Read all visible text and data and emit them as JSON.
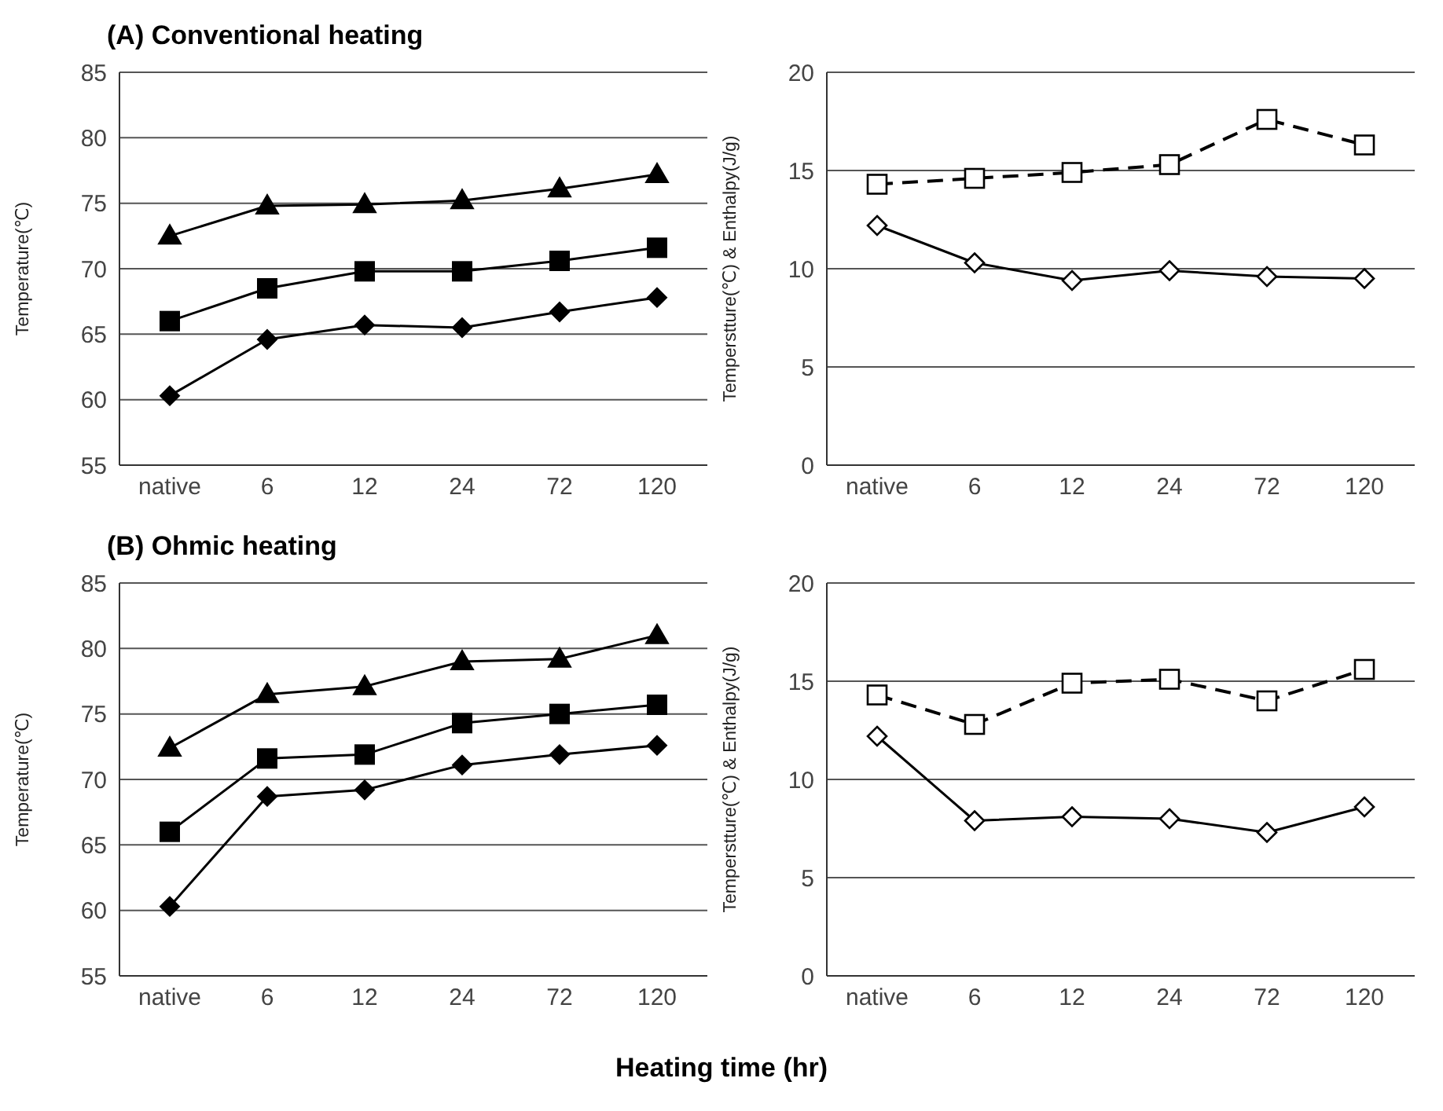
{
  "chart_data": [
    {
      "type": "line",
      "title": "(A) Conventional heating",
      "ylabel": "Temperature(℃)",
      "categories": [
        "native",
        "6",
        "12",
        "24",
        "72",
        "120"
      ],
      "ylim": [
        55,
        85
      ],
      "yticks": [
        55,
        60,
        65,
        70,
        75,
        80,
        85
      ],
      "grid": "y",
      "legend": false,
      "line_style": "solid",
      "series": [
        {
          "color": "#000000",
          "marker": "triangle",
          "values": [
            72.5,
            74.8,
            74.9,
            75.2,
            76.1,
            77.2
          ]
        },
        {
          "color": "#000000",
          "marker": "square",
          "values": [
            66.0,
            68.5,
            69.8,
            69.8,
            70.6,
            71.6
          ]
        },
        {
          "color": "#000000",
          "marker": "diamond",
          "values": [
            60.3,
            64.6,
            65.7,
            65.5,
            66.7,
            67.8
          ]
        }
      ]
    },
    {
      "type": "line",
      "ylabel": "Temperstture(℃) & Enthalpy(J/g)",
      "categories": [
        "native",
        "6",
        "12",
        "24",
        "72",
        "120"
      ],
      "ylim": [
        0,
        20
      ],
      "yticks": [
        0,
        5,
        10,
        15,
        20
      ],
      "grid": "y",
      "legend": false,
      "series": [
        {
          "color": "#000000",
          "marker": "square",
          "line_style": "dashed",
          "values": [
            14.3,
            14.6,
            14.9,
            15.3,
            17.6,
            16.3
          ]
        },
        {
          "color": "#000000",
          "marker": "diamond",
          "line_style": "solid",
          "values": [
            12.2,
            10.3,
            9.4,
            9.9,
            9.6,
            9.5
          ]
        }
      ]
    },
    {
      "type": "line",
      "title": "(B) Ohmic heating",
      "ylabel": "Temperature(℃)",
      "categories": [
        "native",
        "6",
        "12",
        "24",
        "72",
        "120"
      ],
      "ylim": [
        55,
        85
      ],
      "yticks": [
        55,
        60,
        65,
        70,
        75,
        80,
        85
      ],
      "grid": "y",
      "legend": false,
      "line_style": "solid",
      "series": [
        {
          "color": "#000000",
          "marker": "triangle",
          "values": [
            72.4,
            76.5,
            77.1,
            79.0,
            79.2,
            81.0
          ]
        },
        {
          "color": "#000000",
          "marker": "square",
          "values": [
            66.0,
            71.6,
            71.9,
            74.3,
            75.0,
            75.7
          ]
        },
        {
          "color": "#000000",
          "marker": "diamond",
          "values": [
            60.3,
            68.7,
            69.2,
            71.1,
            71.9,
            72.6
          ]
        }
      ]
    },
    {
      "type": "line",
      "ylabel": "Temperstture(℃) & Enthalpy(J/g)",
      "xlabel": "Heating time (hr)",
      "categories": [
        "native",
        "6",
        "12",
        "24",
        "72",
        "120"
      ],
      "ylim": [
        0,
        20
      ],
      "yticks": [
        0,
        5,
        10,
        15,
        20
      ],
      "grid": "y",
      "legend": false,
      "series": [
        {
          "color": "#000000",
          "marker": "square",
          "line_style": "dashed",
          "values": [
            14.3,
            12.8,
            14.9,
            15.1,
            14.0,
            15.6
          ]
        },
        {
          "color": "#000000",
          "marker": "diamond",
          "line_style": "solid",
          "values": [
            12.2,
            7.9,
            8.1,
            8.0,
            7.3,
            8.6
          ]
        }
      ]
    }
  ]
}
